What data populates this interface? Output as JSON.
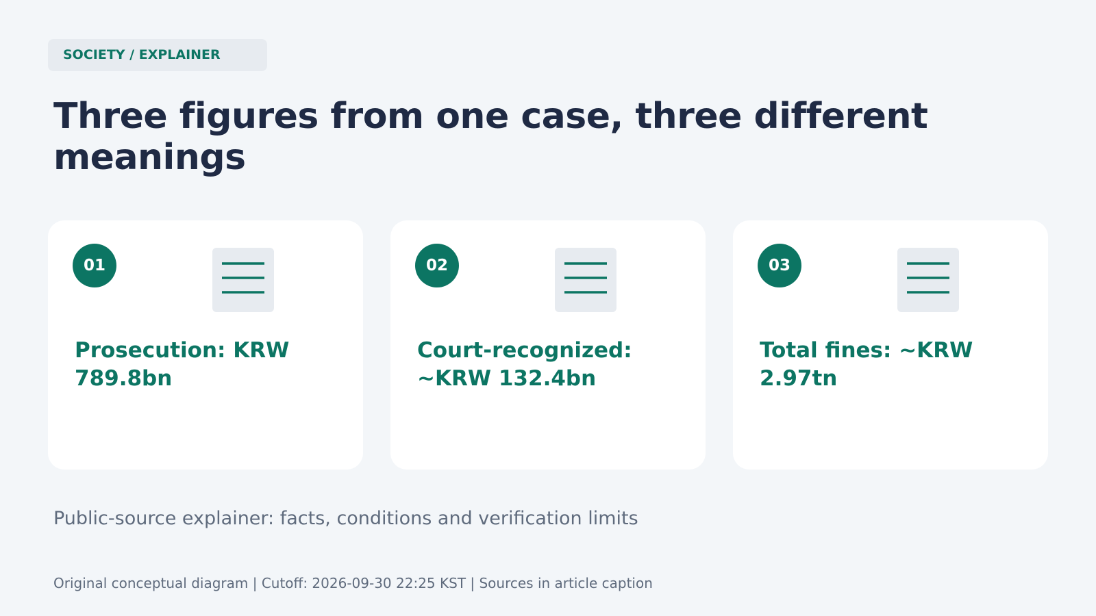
{
  "header": {
    "tag": "SOCIETY / EXPLAINER",
    "title": "Three figures from one case, three different meanings"
  },
  "cards": [
    {
      "number": "01",
      "label": "Prosecution: KRW 789.8bn"
    },
    {
      "number": "02",
      "label": "Court-recognized: ~KRW 132.4bn"
    },
    {
      "number": "03",
      "label": "Total fines: ~KRW 2.97tn"
    }
  ],
  "subtitle": "Public-source explainer: facts, conditions and verification limits",
  "footer": "Original conceptual diagram | Cutoff: 2026-09-30 22:25 KST | Sources in article caption"
}
